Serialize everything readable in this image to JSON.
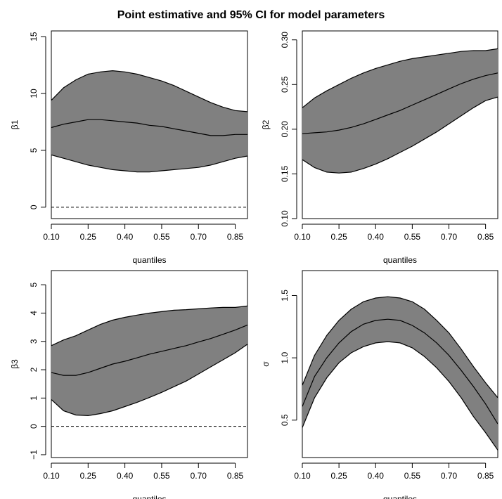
{
  "figure": {
    "title": "Point estimative and 95% CI for model parameters"
  },
  "colors": {
    "band_fill": "#808080",
    "line": "#000000",
    "background": "#ffffff"
  },
  "chart_data": [
    {
      "type": "area",
      "ylabel": "β1",
      "xlabel": "quantiles",
      "xlim": [
        0.1,
        0.9
      ],
      "ylim": [
        -1,
        15.5
      ],
      "xticks": [
        "0.10",
        "0.25",
        "0.40",
        "0.55",
        "0.70",
        "0.85"
      ],
      "xtick_values": [
        0.1,
        0.25,
        0.4,
        0.55,
        0.7,
        0.85
      ],
      "yticks": [
        "0",
        "5",
        "10",
        "15"
      ],
      "ytick_values": [
        0,
        5,
        10,
        15
      ],
      "reference_line": 0,
      "x": [
        0.1,
        0.15,
        0.2,
        0.25,
        0.3,
        0.35,
        0.4,
        0.45,
        0.5,
        0.55,
        0.6,
        0.65,
        0.7,
        0.75,
        0.8,
        0.85,
        0.9
      ],
      "series": [
        {
          "role": "upper",
          "values": [
            9.4,
            10.5,
            11.2,
            11.7,
            11.9,
            12.0,
            11.9,
            11.7,
            11.4,
            11.1,
            10.7,
            10.2,
            9.7,
            9.2,
            8.8,
            8.5,
            8.4
          ]
        },
        {
          "role": "estimate",
          "values": [
            7.0,
            7.3,
            7.5,
            7.7,
            7.7,
            7.6,
            7.5,
            7.4,
            7.2,
            7.1,
            6.9,
            6.7,
            6.5,
            6.3,
            6.3,
            6.4,
            6.4
          ]
        },
        {
          "role": "lower",
          "values": [
            4.6,
            4.3,
            4.0,
            3.7,
            3.5,
            3.3,
            3.2,
            3.1,
            3.1,
            3.2,
            3.3,
            3.4,
            3.5,
            3.7,
            4.0,
            4.3,
            4.5
          ]
        }
      ]
    },
    {
      "type": "area",
      "ylabel": "β2",
      "xlabel": "quantiles",
      "xlim": [
        0.1,
        0.9
      ],
      "ylim": [
        0.1,
        0.31
      ],
      "xticks": [
        "0.10",
        "0.25",
        "0.40",
        "0.55",
        "0.70",
        "0.85"
      ],
      "xtick_values": [
        0.1,
        0.25,
        0.4,
        0.55,
        0.7,
        0.85
      ],
      "yticks": [
        "0.10",
        "0.15",
        "0.20",
        "0.25",
        "0.30"
      ],
      "ytick_values": [
        0.1,
        0.15,
        0.2,
        0.25,
        0.3
      ],
      "reference_line": null,
      "x": [
        0.1,
        0.15,
        0.2,
        0.25,
        0.3,
        0.35,
        0.4,
        0.45,
        0.5,
        0.55,
        0.6,
        0.65,
        0.7,
        0.75,
        0.8,
        0.85,
        0.9
      ],
      "series": [
        {
          "role": "upper",
          "values": [
            0.224,
            0.235,
            0.243,
            0.25,
            0.257,
            0.263,
            0.268,
            0.272,
            0.276,
            0.279,
            0.281,
            0.283,
            0.285,
            0.287,
            0.288,
            0.288,
            0.29
          ]
        },
        {
          "role": "estimate",
          "values": [
            0.195,
            0.196,
            0.197,
            0.199,
            0.202,
            0.206,
            0.211,
            0.216,
            0.221,
            0.227,
            0.233,
            0.239,
            0.245,
            0.251,
            0.256,
            0.26,
            0.263
          ]
        },
        {
          "role": "lower",
          "values": [
            0.166,
            0.157,
            0.152,
            0.151,
            0.152,
            0.156,
            0.161,
            0.167,
            0.174,
            0.181,
            0.189,
            0.197,
            0.206,
            0.215,
            0.224,
            0.232,
            0.236
          ]
        }
      ]
    },
    {
      "type": "area",
      "ylabel": "β3",
      "xlabel": "quantiles",
      "xlim": [
        0.1,
        0.9
      ],
      "ylim": [
        -1.1,
        5.5
      ],
      "xticks": [
        "0.10",
        "0.25",
        "0.40",
        "0.55",
        "0.70",
        "0.85"
      ],
      "xtick_values": [
        0.1,
        0.25,
        0.4,
        0.55,
        0.7,
        0.85
      ],
      "yticks": [
        "−1",
        "0",
        "1",
        "2",
        "3",
        "4",
        "5"
      ],
      "ytick_values": [
        -1,
        0,
        1,
        2,
        3,
        4,
        5
      ],
      "reference_line": 0,
      "x": [
        0.1,
        0.15,
        0.2,
        0.25,
        0.3,
        0.35,
        0.4,
        0.45,
        0.5,
        0.55,
        0.6,
        0.65,
        0.7,
        0.75,
        0.8,
        0.85,
        0.9
      ],
      "series": [
        {
          "role": "upper",
          "values": [
            2.85,
            3.05,
            3.2,
            3.4,
            3.6,
            3.75,
            3.85,
            3.93,
            4.0,
            4.05,
            4.1,
            4.12,
            4.15,
            4.18,
            4.2,
            4.2,
            4.25
          ]
        },
        {
          "role": "estimate",
          "values": [
            1.9,
            1.8,
            1.8,
            1.9,
            2.05,
            2.2,
            2.3,
            2.42,
            2.55,
            2.65,
            2.75,
            2.85,
            2.98,
            3.1,
            3.25,
            3.4,
            3.58
          ]
        },
        {
          "role": "lower",
          "values": [
            0.95,
            0.55,
            0.4,
            0.38,
            0.45,
            0.55,
            0.7,
            0.85,
            1.02,
            1.2,
            1.4,
            1.6,
            1.85,
            2.1,
            2.35,
            2.6,
            2.9
          ]
        }
      ]
    },
    {
      "type": "area",
      "ylabel": "σ",
      "xlabel": "quantiles",
      "xlim": [
        0.1,
        0.9
      ],
      "ylim": [
        0.2,
        1.7
      ],
      "xticks": [
        "0.10",
        "0.25",
        "0.40",
        "0.55",
        "0.70",
        "0.85"
      ],
      "xtick_values": [
        0.1,
        0.25,
        0.4,
        0.55,
        0.7,
        0.85
      ],
      "yticks": [
        "0.5",
        "1.0",
        "1.5"
      ],
      "ytick_values": [
        0.5,
        1.0,
        1.5
      ],
      "reference_line": null,
      "x": [
        0.1,
        0.15,
        0.2,
        0.25,
        0.3,
        0.35,
        0.4,
        0.45,
        0.5,
        0.55,
        0.6,
        0.65,
        0.7,
        0.75,
        0.8,
        0.85,
        0.9
      ],
      "series": [
        {
          "role": "upper",
          "values": [
            0.78,
            1.02,
            1.18,
            1.3,
            1.39,
            1.45,
            1.48,
            1.49,
            1.48,
            1.45,
            1.39,
            1.3,
            1.2,
            1.07,
            0.93,
            0.8,
            0.68
          ]
        },
        {
          "role": "estimate",
          "values": [
            0.61,
            0.85,
            1.0,
            1.12,
            1.21,
            1.27,
            1.3,
            1.31,
            1.3,
            1.26,
            1.2,
            1.12,
            1.02,
            0.9,
            0.77,
            0.63,
            0.47
          ]
        },
        {
          "role": "lower",
          "values": [
            0.44,
            0.68,
            0.84,
            0.96,
            1.04,
            1.09,
            1.12,
            1.13,
            1.12,
            1.08,
            1.01,
            0.92,
            0.81,
            0.68,
            0.53,
            0.4,
            0.26
          ]
        }
      ]
    }
  ]
}
